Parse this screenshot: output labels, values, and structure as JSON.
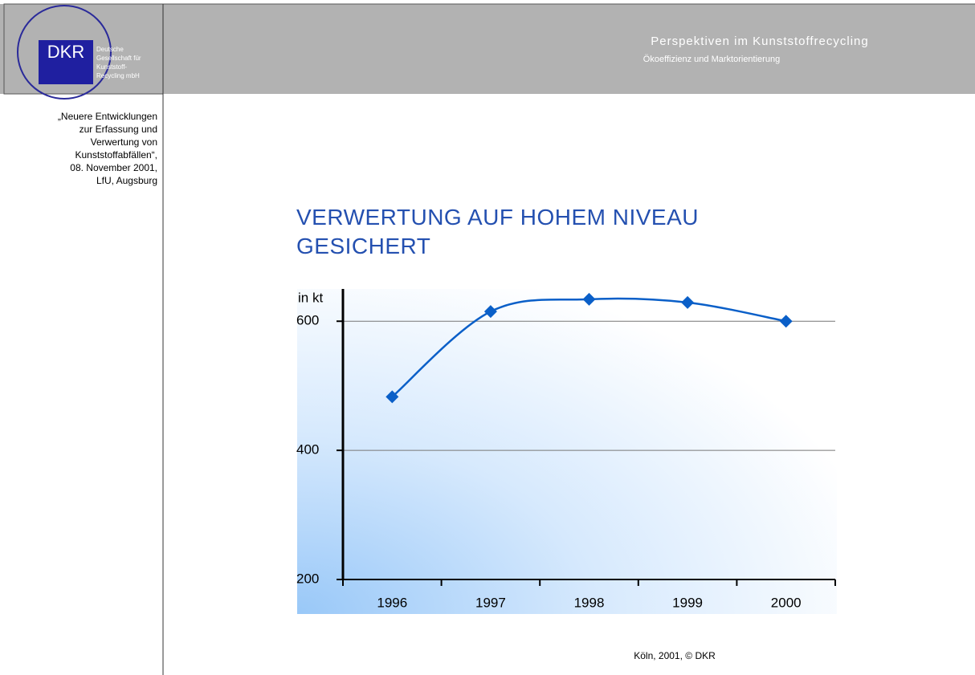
{
  "header": {
    "title": "Perspektiven im Kunststoffrecycling",
    "subtitle": "Ökoeffizienz und Marktorientierung"
  },
  "logo": {
    "mark": "DKR",
    "lines": [
      "Deutsche",
      "Gesellschaft für",
      "Kunststoff-",
      "Recycling mbH"
    ]
  },
  "sidebar": {
    "lines": [
      "„Neuere Entwicklungen",
      "zur Erfassung und",
      "Verwertung von",
      "Kunststoffabfällen“,",
      "08. November 2001,",
      "LfU, Augsburg"
    ]
  },
  "footer": "Köln, 2001, © DKR",
  "chart_data": {
    "type": "line",
    "title": "VERWERTUNG AUF HOHEM NIVEAU GESICHERT",
    "y_label": "in kt",
    "categories": [
      "1996",
      "1997",
      "1998",
      "1999",
      "2000"
    ],
    "values": [
      483,
      615,
      634,
      629,
      600
    ],
    "color": "#0a5fc8",
    "ylim": [
      200,
      650
    ],
    "yticks": [
      200,
      400,
      600
    ],
    "grid": true
  }
}
